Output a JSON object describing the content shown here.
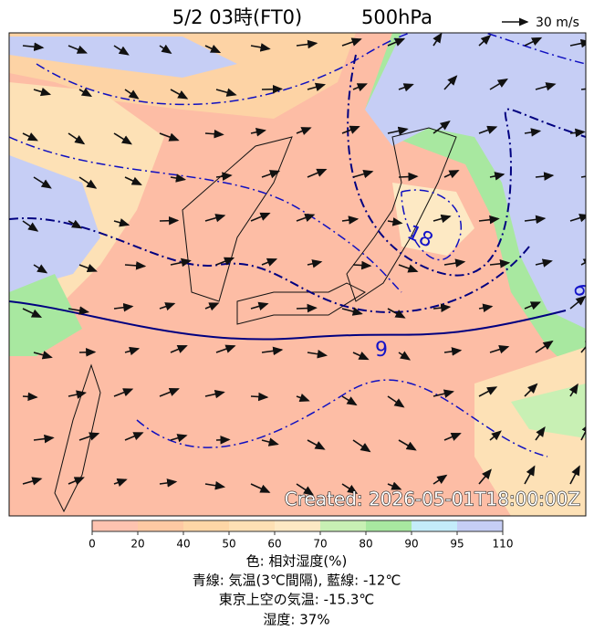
{
  "header": {
    "title": "5/2 03時(FT0)",
    "level": "500hPa",
    "wind_scale": "30 m/s"
  },
  "map": {
    "contour_labels": [
      "18",
      "9",
      "6"
    ],
    "created": "Created: 2026-05-01T18:00:00Z"
  },
  "colorbar": {
    "ticks": [
      0,
      20,
      40,
      50,
      60,
      70,
      80,
      90,
      95,
      110
    ],
    "colors": [
      "#fdc3b0",
      "#fdc9a3",
      "#fdd6a6",
      "#fde0b4",
      "#fde9c4",
      "#c8f0b4",
      "#a8e8a0",
      "#c4ecfa",
      "#c6cef5"
    ]
  },
  "legend": {
    "lines": [
      "色: 相対湿度(%)",
      "青線: 気温(3℃間隔), 藍線: -12℃",
      "東京上空の気温: -15.3℃",
      "湿度: 37%"
    ]
  }
}
